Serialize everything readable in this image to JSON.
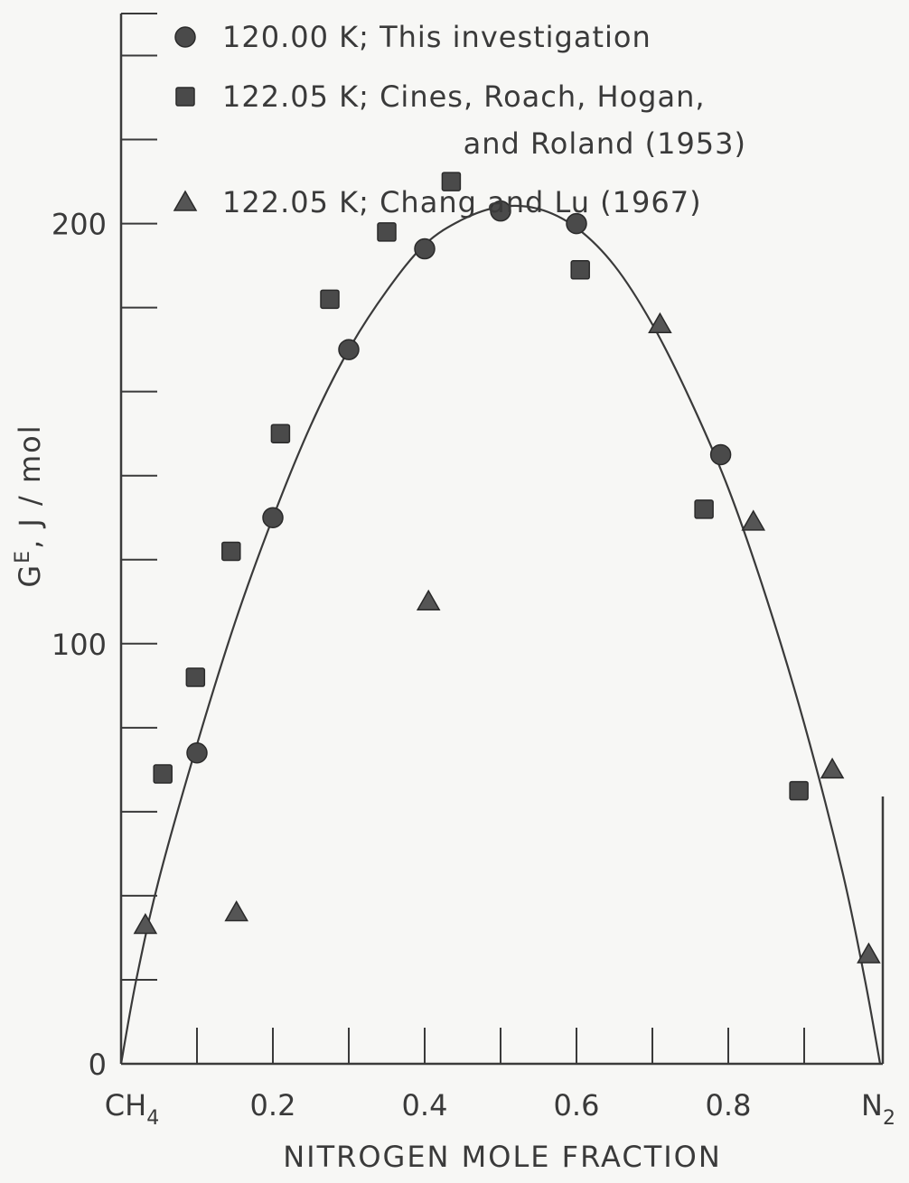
{
  "chart_data": {
    "type": "scatter",
    "xlabel": "NITROGEN MOLE FRACTION",
    "ylabel": "G",
    "ylabel_sup": "E",
    "ylabel_unit": ", J / mol",
    "xlim": [
      0,
      1
    ],
    "ylim": [
      0,
      250
    ],
    "x_tick_labels": [
      {
        "value": 0,
        "label": "CH",
        "sub": "4"
      },
      {
        "value": 0.2,
        "label": "0.2"
      },
      {
        "value": 0.4,
        "label": "0.4"
      },
      {
        "value": 0.6,
        "label": "0.6"
      },
      {
        "value": 0.8,
        "label": "0.8"
      },
      {
        "value": 1.0,
        "label": "N",
        "sub": "2"
      }
    ],
    "x_minor_ticks": [
      0.1,
      0.2,
      0.3,
      0.4,
      0.5,
      0.6,
      0.7,
      0.8,
      0.9
    ],
    "y_tick_labels": [
      {
        "value": 0,
        "label": "0"
      },
      {
        "value": 100,
        "label": "100"
      },
      {
        "value": 200,
        "label": "200"
      }
    ],
    "y_minor_ticks": [
      20,
      40,
      60,
      80,
      120,
      140,
      160,
      180,
      220,
      240
    ],
    "series": [
      {
        "name": "120.00 K; This investigation",
        "marker": "circle",
        "points": [
          [
            0.1,
            74
          ],
          [
            0.2,
            130
          ],
          [
            0.3,
            170
          ],
          [
            0.4,
            194
          ],
          [
            0.5,
            203
          ],
          [
            0.6,
            200
          ],
          [
            0.79,
            145
          ]
        ]
      },
      {
        "name": "122.05 K; Cines, Roach, Hogan, and Roland (1953)",
        "legend_lines": [
          "122.05 K; Cines, Roach, Hogan,",
          "and Roland (1953)"
        ],
        "marker": "square",
        "points": [
          [
            0.055,
            69
          ],
          [
            0.098,
            92
          ],
          [
            0.145,
            122
          ],
          [
            0.21,
            150
          ],
          [
            0.275,
            182
          ],
          [
            0.35,
            198
          ],
          [
            0.435,
            210
          ],
          [
            0.605,
            189
          ],
          [
            0.768,
            132
          ],
          [
            0.893,
            65
          ]
        ]
      },
      {
        "name": "122.05 K; Chang and Lu (1967)",
        "marker": "triangle",
        "points": [
          [
            0.032,
            33
          ],
          [
            0.152,
            36
          ],
          [
            0.405,
            110
          ],
          [
            0.71,
            176
          ],
          [
            0.833,
            129
          ],
          [
            0.937,
            70
          ],
          [
            0.985,
            26
          ]
        ]
      }
    ],
    "fit_curve": {
      "description": "smooth line",
      "points": [
        [
          0,
          0
        ],
        [
          0.02,
          20
        ],
        [
          0.05,
          44
        ],
        [
          0.1,
          76
        ],
        [
          0.15,
          105
        ],
        [
          0.2,
          130
        ],
        [
          0.25,
          152
        ],
        [
          0.3,
          170
        ],
        [
          0.35,
          184
        ],
        [
          0.4,
          195
        ],
        [
          0.45,
          201
        ],
        [
          0.5,
          204
        ],
        [
          0.55,
          203.5
        ],
        [
          0.6,
          199
        ],
        [
          0.65,
          190
        ],
        [
          0.7,
          176
        ],
        [
          0.75,
          158
        ],
        [
          0.8,
          137
        ],
        [
          0.85,
          111
        ],
        [
          0.9,
          81
        ],
        [
          0.95,
          46
        ],
        [
          0.98,
          20
        ],
        [
          1.0,
          0
        ]
      ]
    }
  }
}
